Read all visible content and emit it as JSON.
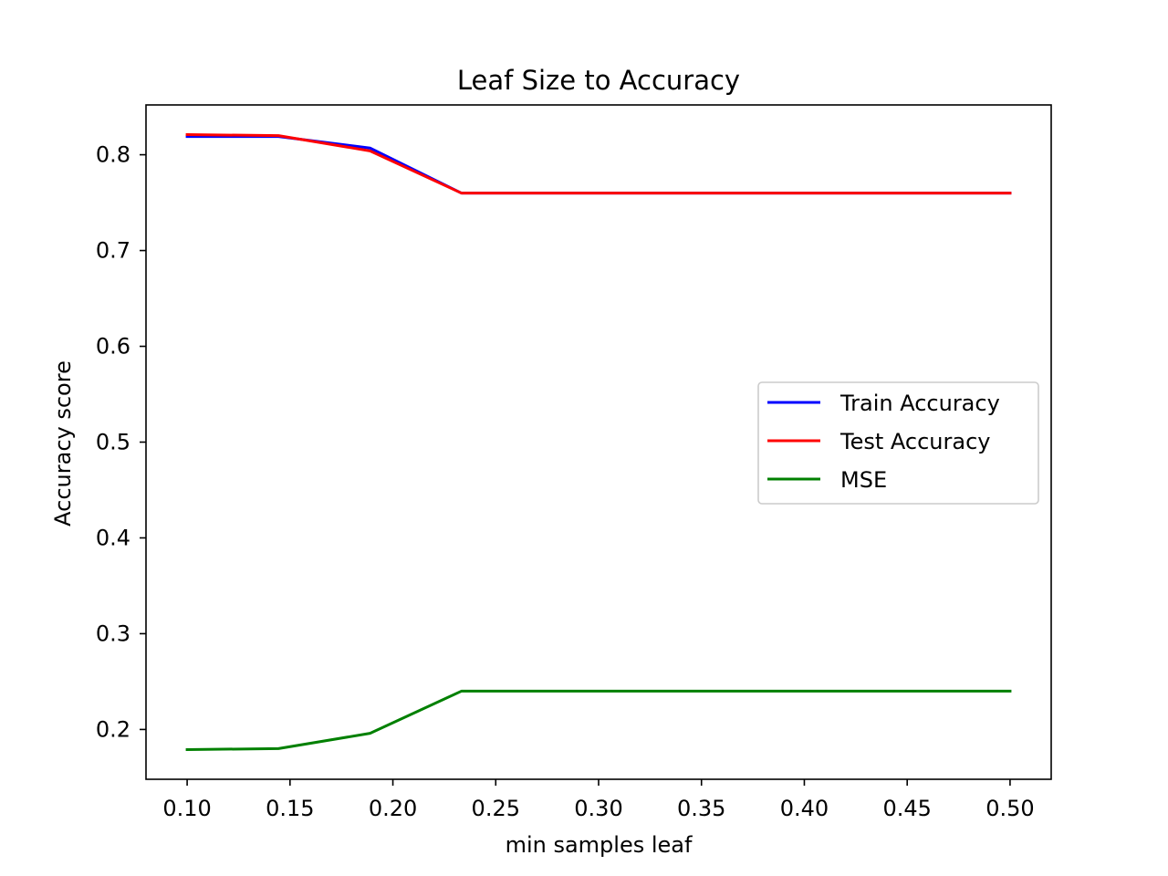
{
  "chart_data": {
    "type": "line",
    "title": "Leaf Size to Accuracy",
    "xlabel": "min samples leaf",
    "ylabel": "Accuracy score",
    "xlim": [
      0.08,
      0.52
    ],
    "ylim": [
      0.148,
      0.852
    ],
    "xticks": [
      0.1,
      0.15,
      0.2,
      0.25,
      0.3,
      0.35,
      0.4,
      0.45,
      0.5
    ],
    "xtick_labels": [
      "0.10",
      "0.15",
      "0.20",
      "0.25",
      "0.30",
      "0.35",
      "0.40",
      "0.45",
      "0.50"
    ],
    "yticks": [
      0.2,
      0.3,
      0.4,
      0.5,
      0.6,
      0.7,
      0.8
    ],
    "ytick_labels": [
      "0.2",
      "0.3",
      "0.4",
      "0.5",
      "0.6",
      "0.7",
      "0.8"
    ],
    "grid": false,
    "legend_position": "center-right",
    "x": [
      0.1,
      0.1444,
      0.1889,
      0.2333,
      0.2778,
      0.3222,
      0.3667,
      0.4111,
      0.4556,
      0.5
    ],
    "series": [
      {
        "name": "Train Accuracy",
        "color": "#0000ff",
        "values": [
          0.819,
          0.819,
          0.807,
          0.76,
          0.76,
          0.76,
          0.76,
          0.76,
          0.76,
          0.76
        ]
      },
      {
        "name": "Test Accuracy",
        "color": "#ff0000",
        "values": [
          0.821,
          0.82,
          0.804,
          0.76,
          0.76,
          0.76,
          0.76,
          0.76,
          0.76,
          0.76
        ]
      },
      {
        "name": "MSE",
        "color": "#008000",
        "values": [
          0.179,
          0.18,
          0.196,
          0.24,
          0.24,
          0.24,
          0.24,
          0.24,
          0.24,
          0.24
        ]
      }
    ]
  }
}
